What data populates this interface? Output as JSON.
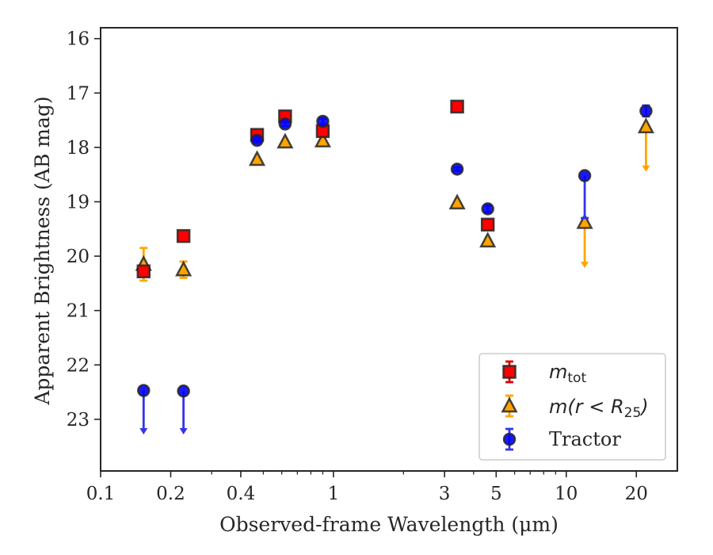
{
  "chart_data": {
    "type": "scatter",
    "title": "",
    "xlabel": "Observed-frame Wavelength (μm)",
    "ylabel": "Apparent Brightness (AB mag)",
    "xscale": "log",
    "xlim": [
      0.1,
      30
    ],
    "ylim": [
      23.95,
      15.8
    ],
    "y_inverted": true,
    "x_tick_labels": [
      "0.1",
      "0.2",
      "0.4",
      "1",
      "3",
      "5",
      "10",
      "20"
    ],
    "y_tick_labels": [
      "16",
      "17",
      "18",
      "19",
      "20",
      "21",
      "22",
      "23"
    ],
    "grid": false,
    "legend_position": "lower-right",
    "series": [
      {
        "name_main": "m",
        "name_sub": "tot",
        "marker": "square",
        "color": "#ff0000",
        "errcolor": "#dd0000",
        "points": [
          {
            "x": 0.153,
            "y": 20.28,
            "err": 0.05
          },
          {
            "x": 0.227,
            "y": 19.63,
            "err": 0.03
          },
          {
            "x": 0.47,
            "y": 17.77,
            "err": 0.03
          },
          {
            "x": 0.62,
            "y": 17.43,
            "err": 0.04
          },
          {
            "x": 0.9,
            "y": 17.7,
            "err": 0.03
          },
          {
            "x": 3.4,
            "y": 17.25,
            "err": 0.02
          },
          {
            "x": 4.6,
            "y": 19.42,
            "err": 0.03
          }
        ]
      },
      {
        "name": "m(r < R25)",
        "marker": "triangle",
        "color": "#ffa500",
        "errcolor": "#ffa500",
        "points": [
          {
            "x": 0.153,
            "y": 20.15,
            "err": 0.3
          },
          {
            "x": 0.227,
            "y": 20.25,
            "err": 0.15
          },
          {
            "x": 0.47,
            "y": 18.22,
            "err": 0.0
          },
          {
            "x": 0.62,
            "y": 17.9,
            "err": 0.0
          },
          {
            "x": 0.9,
            "y": 17.88,
            "err": 0.0
          },
          {
            "x": 3.4,
            "y": 19.02,
            "err": 0.0
          },
          {
            "x": 4.6,
            "y": 19.72,
            "err": 0.0
          },
          {
            "x": 12.0,
            "y": 19.38,
            "upper_limit_to": 20.22
          },
          {
            "x": 22.0,
            "y": 17.62,
            "upper_limit_to": 18.45
          }
        ]
      },
      {
        "name": "Tractor",
        "marker": "circle",
        "color": "#0000ff",
        "errcolor": "#3333ee",
        "points": [
          {
            "x": 0.153,
            "y": 22.47,
            "upper_limit_to": 23.28
          },
          {
            "x": 0.227,
            "y": 22.48,
            "upper_limit_to": 23.28
          },
          {
            "x": 0.47,
            "y": 17.87,
            "err": 0.04
          },
          {
            "x": 0.62,
            "y": 17.57,
            "err": 0.04
          },
          {
            "x": 0.9,
            "y": 17.52,
            "err": 0.05
          },
          {
            "x": 3.4,
            "y": 18.4,
            "err": 0.03
          },
          {
            "x": 4.6,
            "y": 19.13,
            "err": 0.06
          },
          {
            "x": 12.0,
            "y": 18.52,
            "err_high": 0.78
          },
          {
            "x": 22.0,
            "y": 17.33,
            "err": 0.1
          }
        ]
      }
    ]
  }
}
